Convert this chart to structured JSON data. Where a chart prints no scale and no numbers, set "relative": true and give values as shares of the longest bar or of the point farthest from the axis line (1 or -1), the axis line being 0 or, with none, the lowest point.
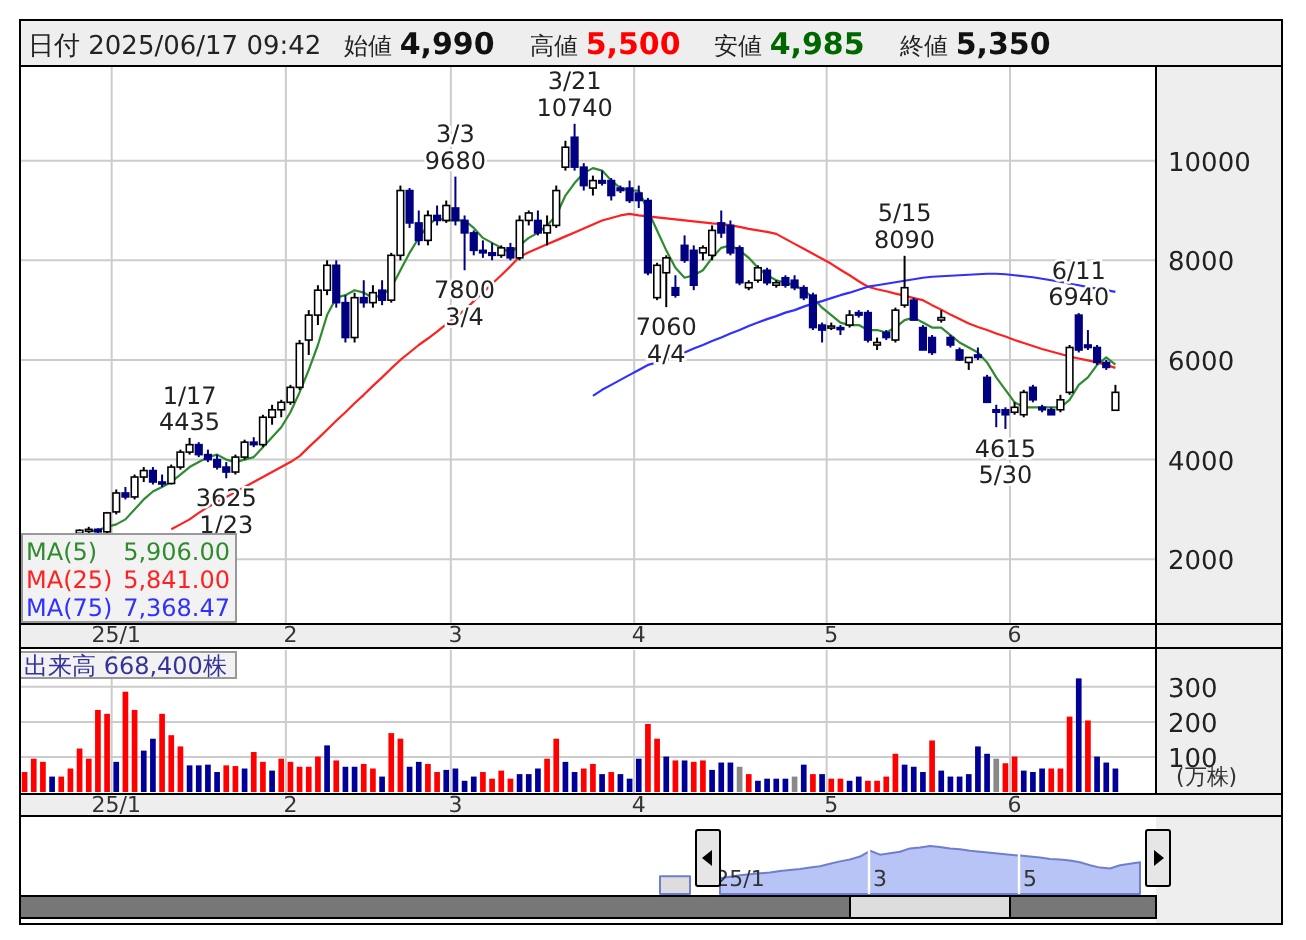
{
  "chart_data": [
    {
      "type": "candlestick",
      "title": "日付 2025/06/17 09:42",
      "categories": [
        null,
        null,
        null,
        null,
        null,
        null,
        null,
        null,
        null,
        null,
        "25/1",
        null,
        null,
        null,
        null,
        null,
        null,
        null,
        null,
        null,
        null,
        null,
        null,
        null,
        null,
        null,
        null,
        null,
        null,
        "2",
        null,
        null,
        null,
        null,
        null,
        null,
        null,
        null,
        null,
        null,
        null,
        null,
        null,
        null,
        null,
        null,
        null,
        "3",
        null,
        null,
        null,
        null,
        null,
        null,
        null,
        null,
        null,
        null,
        null,
        null,
        null,
        null,
        null,
        null,
        null,
        null,
        null,
        "4",
        null,
        null,
        null,
        null,
        null,
        null,
        null,
        null,
        null,
        null,
        null,
        null,
        null,
        null,
        null,
        null,
        null,
        null,
        null,
        null,
        "5",
        null,
        null,
        null,
        null,
        null,
        null,
        null,
        null,
        null,
        null,
        null,
        null,
        null,
        null,
        null,
        null,
        null,
        null,
        null,
        "6",
        null,
        null,
        null,
        null,
        null,
        null,
        null,
        null,
        null,
        null,
        null
      ],
      "ohlc": [
        null,
        null,
        null,
        null,
        null,
        null,
        [
          2520,
          2600,
          2500,
          2580
        ],
        [
          2580,
          2650,
          2530,
          2600
        ],
        [
          2600,
          2620,
          2520,
          2550
        ],
        [
          2550,
          2950,
          2520,
          2930
        ],
        [
          2950,
          3400,
          2900,
          3330
        ],
        [
          3330,
          3450,
          3200,
          3250
        ],
        [
          3250,
          3700,
          3200,
          3650
        ],
        [
          3650,
          3850,
          3550,
          3780
        ],
        [
          3780,
          3850,
          3500,
          3550
        ],
        [
          3550,
          3700,
          3450,
          3520
        ],
        [
          3520,
          3900,
          3500,
          3850
        ],
        [
          3850,
          4200,
          3800,
          4150
        ],
        [
          4150,
          4435,
          4100,
          4300
        ],
        [
          4300,
          4350,
          4050,
          4100
        ],
        [
          4100,
          4200,
          3950,
          4000
        ],
        [
          4000,
          4100,
          3800,
          3850
        ],
        [
          3850,
          3950,
          3625,
          3750
        ],
        [
          3750,
          4100,
          3700,
          4050
        ],
        [
          4050,
          4400,
          4000,
          4350
        ],
        [
          4350,
          4450,
          4250,
          4300
        ],
        [
          4300,
          4900,
          4250,
          4850
        ],
        [
          4850,
          5100,
          4700,
          5000
        ],
        [
          5000,
          5200,
          4850,
          5150
        ],
        [
          5150,
          5500,
          5100,
          5450
        ],
        [
          5450,
          6400,
          5400,
          6330
        ],
        [
          6400,
          7000,
          6100,
          6900
        ],
        [
          6900,
          7500,
          6700,
          7400
        ],
        [
          7400,
          8000,
          7300,
          7900
        ],
        [
          7900,
          8000,
          7050,
          7150
        ],
        [
          7150,
          7300,
          6350,
          6450
        ],
        [
          6450,
          7350,
          6350,
          7250
        ],
        [
          7250,
          7600,
          7050,
          7150
        ],
        [
          7150,
          7500,
          7050,
          7350
        ],
        [
          7400,
          7600,
          7100,
          7200
        ],
        [
          7200,
          8150,
          7150,
          8100
        ],
        [
          8100,
          9500,
          8000,
          9400
        ],
        [
          9400,
          9450,
          8650,
          8750
        ],
        [
          8750,
          9000,
          8300,
          8400
        ],
        [
          8400,
          9000,
          8300,
          8900
        ],
        [
          8900,
          9100,
          8700,
          8800
        ],
        [
          8800,
          9200,
          8750,
          9100
        ],
        [
          9050,
          9680,
          8700,
          8800
        ],
        [
          8800,
          8900,
          7800,
          8550
        ],
        [
          8550,
          8600,
          8100,
          8200
        ],
        [
          8200,
          8400,
          8050,
          8150
        ],
        [
          8150,
          8350,
          8000,
          8100
        ],
        [
          8100,
          8300,
          8050,
          8250
        ],
        [
          8250,
          8350,
          8000,
          8050
        ],
        [
          8050,
          8900,
          8000,
          8800
        ],
        [
          8800,
          9000,
          8700,
          8950
        ],
        [
          8800,
          9000,
          8500,
          8550
        ],
        [
          8550,
          8900,
          8300,
          8700
        ],
        [
          8700,
          9500,
          8650,
          9400
        ],
        [
          9870,
          10400,
          9800,
          10270
        ],
        [
          10470,
          10740,
          9800,
          9870
        ],
        [
          9870,
          9950,
          9400,
          9500
        ],
        [
          9450,
          9700,
          9300,
          9600
        ],
        [
          9600,
          9800,
          9500,
          9550
        ],
        [
          9600,
          9650,
          9200,
          9300
        ],
        [
          9450,
          9500,
          9350,
          9400
        ],
        [
          9450,
          9600,
          9150,
          9200
        ],
        [
          9350,
          9500,
          9050,
          9200
        ],
        [
          9200,
          9250,
          7700,
          7750
        ],
        [
          7250,
          7950,
          7200,
          7900
        ],
        [
          7750,
          8100,
          7060,
          8050
        ],
        [
          7450,
          7700,
          7250,
          7300
        ],
        [
          8300,
          8500,
          7950,
          8000
        ],
        [
          8200,
          8300,
          7400,
          7500
        ],
        [
          8150,
          8300,
          8000,
          8250
        ],
        [
          8100,
          8700,
          8000,
          8600
        ],
        [
          8750,
          9000,
          8450,
          8550
        ],
        [
          8700,
          8800,
          8100,
          8150
        ],
        [
          8250,
          8300,
          7500,
          7550
        ],
        [
          7450,
          7600,
          7400,
          7550
        ],
        [
          7600,
          7900,
          7550,
          7850
        ],
        [
          7800,
          7850,
          7500,
          7550
        ],
        [
          7500,
          7600,
          7450,
          7550
        ],
        [
          7650,
          7700,
          7450,
          7500
        ],
        [
          7600,
          7700,
          7400,
          7450
        ],
        [
          7450,
          7500,
          7200,
          7250
        ],
        [
          7300,
          7350,
          6600,
          6650
        ],
        [
          6700,
          6750,
          6350,
          6600
        ],
        [
          6650,
          6750,
          6600,
          6680
        ],
        [
          6650,
          6700,
          6500,
          6620
        ],
        [
          6700,
          7000,
          6650,
          6900
        ],
        [
          6950,
          7000,
          6850,
          6900
        ],
        [
          6950,
          7000,
          6350,
          6400
        ],
        [
          6300,
          6450,
          6200,
          6350
        ],
        [
          6550,
          6600,
          6400,
          6450
        ],
        [
          6400,
          7050,
          6350,
          7000
        ],
        [
          7100,
          8090,
          7050,
          7450
        ],
        [
          7200,
          7250,
          6800,
          6800
        ],
        [
          6650,
          6700,
          6200,
          6200
        ],
        [
          6450,
          6500,
          6100,
          6150
        ],
        [
          6800,
          7000,
          6750,
          6850
        ],
        [
          6450,
          6500,
          6250,
          6300
        ],
        [
          6200,
          6250,
          5980,
          6000
        ],
        [
          5950,
          6050,
          5800,
          6050
        ],
        [
          6100,
          6250,
          6000,
          6050
        ],
        [
          5650,
          5700,
          5150,
          5150
        ],
        [
          5000,
          5100,
          4650,
          4950
        ],
        [
          5000,
          5050,
          4615,
          4900
        ],
        [
          4950,
          5150,
          4900,
          5050
        ],
        [
          4900,
          5400,
          4850,
          5350
        ],
        [
          5450,
          5500,
          5150,
          5200
        ],
        [
          5050,
          5100,
          4950,
          5000
        ],
        [
          5000,
          5050,
          4900,
          4900
        ],
        [
          5000,
          5300,
          4950,
          5200
        ],
        [
          5350,
          6300,
          5300,
          6250
        ],
        [
          6900,
          6940,
          6150,
          6200
        ],
        [
          6300,
          6600,
          6200,
          6250
        ],
        [
          6250,
          6300,
          5900,
          5950
        ],
        [
          5950,
          6000,
          5800,
          5850
        ],
        [
          4990,
          5500,
          4985,
          5350
        ]
      ],
      "series": [
        {
          "name": "MA(5)",
          "type": "line",
          "color": "#2e8b2e",
          "values": [
            null,
            null,
            null,
            null,
            null,
            null,
            null,
            2560,
            2580,
            2650,
            2700,
            2800,
            3000,
            3200,
            3360,
            3450,
            3550,
            3700,
            3850,
            3950,
            4050,
            4100,
            4000,
            3950,
            4000,
            4050,
            4250,
            4450,
            4650,
            4950,
            5350,
            5800,
            6300,
            6900,
            7250,
            7300,
            7400,
            7350,
            7250,
            7300,
            7450,
            7800,
            8150,
            8450,
            8700,
            8850,
            8800,
            8800,
            8800,
            8650,
            8450,
            8350,
            8250,
            8150,
            8300,
            8450,
            8550,
            8700,
            8900,
            9300,
            9550,
            9750,
            9850,
            9800,
            9600,
            9450,
            9400,
            9400,
            9000,
            8600,
            8200,
            7850,
            7650,
            7700,
            7800,
            8050,
            8250,
            8300,
            8200,
            8050,
            7850,
            7700,
            7600,
            7550,
            7500,
            7400,
            7250,
            7050,
            6900,
            6750,
            6700,
            6700,
            6600,
            6600,
            6550,
            6650,
            6800,
            6850,
            6750,
            6650,
            6650,
            6500,
            6350,
            6250,
            6150,
            5950,
            5650,
            5400,
            5150,
            5050,
            5050,
            5050,
            5050,
            5050,
            5200,
            5500,
            5650,
            5900,
            6050,
            5906
          ]
        },
        {
          "name": "MA(25)",
          "type": "line",
          "color": "#ff2020",
          "values": [
            null,
            null,
            null,
            null,
            null,
            null,
            null,
            null,
            null,
            null,
            null,
            null,
            null,
            null,
            null,
            null,
            2600,
            2700,
            2800,
            2930,
            3050,
            3150,
            3250,
            3350,
            3450,
            3550,
            3650,
            3750,
            3850,
            3950,
            4070,
            4250,
            4420,
            4600,
            4780,
            4950,
            5130,
            5300,
            5480,
            5650,
            5830,
            6000,
            6150,
            6300,
            6430,
            6570,
            6720,
            6860,
            7000,
            7180,
            7350,
            7530,
            7700,
            7880,
            8070,
            8160,
            8240,
            8320,
            8400,
            8480,
            8560,
            8640,
            8720,
            8800,
            8850,
            8900,
            8930,
            8900,
            8880,
            8860,
            8840,
            8820,
            8800,
            8780,
            8760,
            8740,
            8730,
            8700,
            8670,
            8630,
            8600,
            8570,
            8530,
            8430,
            8330,
            8230,
            8130,
            8030,
            7930,
            7810,
            7700,
            7580,
            7470,
            7420,
            7380,
            7330,
            7290,
            7240,
            7200,
            7100,
            7010,
            6910,
            6820,
            6730,
            6660,
            6600,
            6530,
            6470,
            6400,
            6340,
            6280,
            6220,
            6170,
            6120,
            6070,
            6030,
            5990,
            5950,
            5900,
            5841
          ]
        },
        {
          "name": "MA(75)",
          "type": "line",
          "color": "#3030ff",
          "values": [
            null,
            null,
            null,
            null,
            null,
            null,
            null,
            null,
            null,
            null,
            null,
            null,
            null,
            null,
            null,
            null,
            null,
            null,
            null,
            null,
            null,
            null,
            null,
            null,
            null,
            null,
            null,
            null,
            null,
            null,
            null,
            null,
            null,
            null,
            null,
            null,
            null,
            null,
            null,
            null,
            null,
            null,
            null,
            null,
            null,
            null,
            null,
            null,
            null,
            null,
            null,
            null,
            null,
            null,
            null,
            null,
            null,
            null,
            null,
            null,
            null,
            null,
            5280,
            5400,
            5500,
            5600,
            5700,
            5800,
            5900,
            5950,
            6000,
            6080,
            6150,
            6230,
            6300,
            6380,
            6450,
            6530,
            6600,
            6680,
            6750,
            6820,
            6880,
            6950,
            7000,
            7070,
            7130,
            7180,
            7240,
            7300,
            7350,
            7410,
            7470,
            7500,
            7530,
            7560,
            7590,
            7620,
            7650,
            7670,
            7680,
            7690,
            7700,
            7710,
            7720,
            7730,
            7730,
            7720,
            7700,
            7680,
            7660,
            7630,
            7600,
            7570,
            7530,
            7500,
            7460,
            7430,
            7400,
            7368
          ]
        }
      ],
      "ylim": [
        700,
        11900
      ],
      "yticks": [
        2000,
        4000,
        6000,
        8000,
        10000
      ],
      "grid": true,
      "legend": "bottom left",
      "annotations": [
        "始値 4,990",
        "高値 5,500",
        "安値 4,985",
        "終値 5,350",
        "5,906.00",
        "5,841.00",
        "7,368.47",
        {
          "text": "1/17\n4435",
          "y": 4435
        },
        {
          "text": "3625\n1/23",
          "y": 3625
        },
        {
          "text": "3/3\n9680",
          "y": 9680
        },
        {
          "text": "7800\n3/4",
          "y": 7800
        },
        {
          "text": "3/21\n10740",
          "y": 10740
        },
        {
          "text": "7060\n4/4",
          "y": 7060
        },
        {
          "text": "5/15\n8090",
          "y": 8090
        },
        {
          "text": "4615\n5/30",
          "y": 4615
        },
        {
          "text": "6/11\n6940",
          "y": 6940
        }
      ]
    },
    {
      "type": "bar",
      "title": "出来高 668,400株",
      "ylabel": "(万株)",
      "categories": [
        null,
        null,
        null,
        null,
        null,
        null,
        null,
        null,
        null,
        null,
        "25/1",
        null,
        null,
        null,
        null,
        null,
        null,
        null,
        null,
        null,
        null,
        null,
        null,
        null,
        null,
        null,
        null,
        null,
        null,
        "2",
        null,
        null,
        null,
        null,
        null,
        null,
        null,
        null,
        null,
        null,
        null,
        null,
        null,
        null,
        null,
        null,
        null,
        "3",
        null,
        null,
        null,
        null,
        null,
        null,
        null,
        null,
        null,
        null,
        null,
        null,
        null,
        null,
        null,
        null,
        null,
        null,
        null,
        "4",
        null,
        null,
        null,
        null,
        null,
        null,
        null,
        null,
        null,
        null,
        null,
        null,
        null,
        null,
        null,
        null,
        null,
        null,
        null,
        null,
        "5",
        null,
        null,
        null,
        null,
        null,
        null,
        null,
        null,
        null,
        null,
        null,
        null,
        null,
        null,
        null,
        null,
        null,
        null,
        null,
        "6",
        null,
        null,
        null,
        null,
        null,
        null,
        null,
        null,
        null,
        null,
        null
      ],
      "values": [
        57,
        95,
        86,
        44,
        44,
        67,
        124,
        95,
        234,
        223,
        86,
        286,
        234,
        118,
        152,
        223,
        162,
        130,
        76,
        76,
        78,
        57,
        76,
        74,
        67,
        114,
        86,
        61,
        95,
        86,
        72,
        72,
        101,
        133,
        90,
        72,
        72,
        80,
        67,
        44,
        168,
        152,
        72,
        86,
        80,
        57,
        63,
        67,
        32,
        44,
        57,
        38,
        61,
        38,
        51,
        51,
        67,
        95,
        152,
        86,
        57,
        67,
        80,
        51,
        57,
        51,
        38,
        95,
        194,
        152,
        101,
        90,
        90,
        86,
        90,
        63,
        84,
        84,
        72,
        51,
        32,
        38,
        38,
        38,
        44,
        78,
        51,
        51,
        38,
        38,
        32,
        44,
        32,
        32,
        44,
        109,
        78,
        72,
        57,
        147,
        61,
        44,
        44,
        51,
        130,
        109,
        95,
        82,
        101,
        61,
        57,
        67,
        67,
        67,
        215,
        324,
        204,
        101,
        84,
        67
      ],
      "colors": [
        "#ff0000",
        "#ff0000",
        "#ff0000",
        "#000099",
        "#ff0000",
        "#ff0000",
        "#ff0000",
        "#ff0000",
        "#ff0000",
        "#ff0000",
        "#000099",
        "#ff0000",
        "#ff0000",
        "#000099",
        "#000099",
        "#ff0000",
        "#ff0000",
        "#ff0000",
        "#000099",
        "#000099",
        "#000099",
        "#000099",
        "#ff0000",
        "#ff0000",
        "#000099",
        "#ff0000",
        "#ff0000",
        "#000099",
        "#ff0000",
        "#ff0000",
        "#ff0000",
        "#ff0000",
        "#ff0000",
        "#000099",
        "#ff0000",
        "#000099",
        "#000099",
        "#ff0000",
        "#ff0000",
        "#000099",
        "#ff0000",
        "#ff0000",
        "#000099",
        "#000099",
        "#ff0000",
        "#ff0000",
        "#000099",
        "#000099",
        "#000099",
        "#000099",
        "#ff0000",
        "#ff0000",
        "#ff0000",
        "#ff0000",
        "#000099",
        "#000099",
        "#000099",
        "#ff0000",
        "#ff0000",
        "#000099",
        "#000099",
        "#ff0000",
        "#ff0000",
        "#000099",
        "#ff0000",
        "#000099",
        "#000099",
        "#000099",
        "#ff0000",
        "#ff0000",
        "#000099",
        "#ff0000",
        "#000099",
        "#ff0000",
        "#ff0000",
        "#000099",
        "#000099",
        "#000099",
        "#888888",
        "#ff0000",
        "#000099",
        "#000099",
        "#000099",
        "#000099",
        "#888888",
        "#000099",
        "#ff0000",
        "#000099",
        "#ff0000",
        "#ff0000",
        "#000099",
        "#000099",
        "#ff0000",
        "#ff0000",
        "#ff0000",
        "#ff0000",
        "#000099",
        "#000099",
        "#000099",
        "#ff0000",
        "#000099",
        "#000099",
        "#000099",
        "#000099",
        "#000099",
        "#000099",
        "#888888",
        "#ff0000",
        "#ff0000",
        "#000099",
        "#000099",
        "#000099",
        "#ff0000",
        "#ff0000",
        "#ff0000",
        "#000099",
        "#ff0000",
        "#000099",
        "#000099",
        "#000099"
      ],
      "ylim": [
        0,
        405
      ],
      "yticks": [
        100,
        200,
        300
      ],
      "grid": true
    },
    {
      "type": "area",
      "relative": true,
      "categories": [
        null,
        null,
        null,
        null,
        null,
        null,
        null,
        null,
        "25/1",
        null,
        null,
        null,
        null,
        null,
        null,
        null,
        null,
        null,
        null,
        null,
        null,
        null,
        "3",
        null,
        null,
        null,
        null,
        null,
        null,
        null,
        null,
        null,
        null,
        null,
        null,
        null,
        null,
        "5",
        null,
        null,
        null,
        null,
        null,
        null,
        null,
        null,
        null,
        null,
        null,
        null
      ],
      "series": [
        {
          "color": "#dddddd",
          "values": [
            0.37,
            0.37,
            0.37,
            0.37,
            null,
            null,
            null,
            null,
            null,
            null,
            null,
            null,
            null,
            null,
            null,
            null,
            null,
            null,
            null,
            null,
            null,
            null,
            null,
            null,
            null,
            null,
            null,
            null,
            null,
            null,
            null,
            null,
            null,
            null,
            null,
            null,
            null,
            null,
            null,
            null,
            null,
            null,
            null,
            null,
            null,
            null,
            null,
            null,
            null,
            null
          ]
        },
        {
          "color": "#b8c4f6",
          "values": [
            null,
            null,
            null,
            null,
            null,
            null,
            0.33,
            0.36,
            0.39,
            0.41,
            0.43,
            0.45,
            0.48,
            0.5,
            0.52,
            0.55,
            0.58,
            0.63,
            0.68,
            0.72,
            0.78,
            0.9,
            0.82,
            0.85,
            0.88,
            0.95,
            0.97,
            1,
            0.98,
            0.95,
            0.93,
            0.9,
            0.88,
            0.86,
            0.84,
            0.82,
            0.8,
            0.78,
            0.76,
            0.73,
            0.72,
            0.7,
            0.66,
            0.6,
            0.55,
            0.53,
            0.6,
            0.63,
            0.66,
            null
          ]
        }
      ]
    }
  ]
}
